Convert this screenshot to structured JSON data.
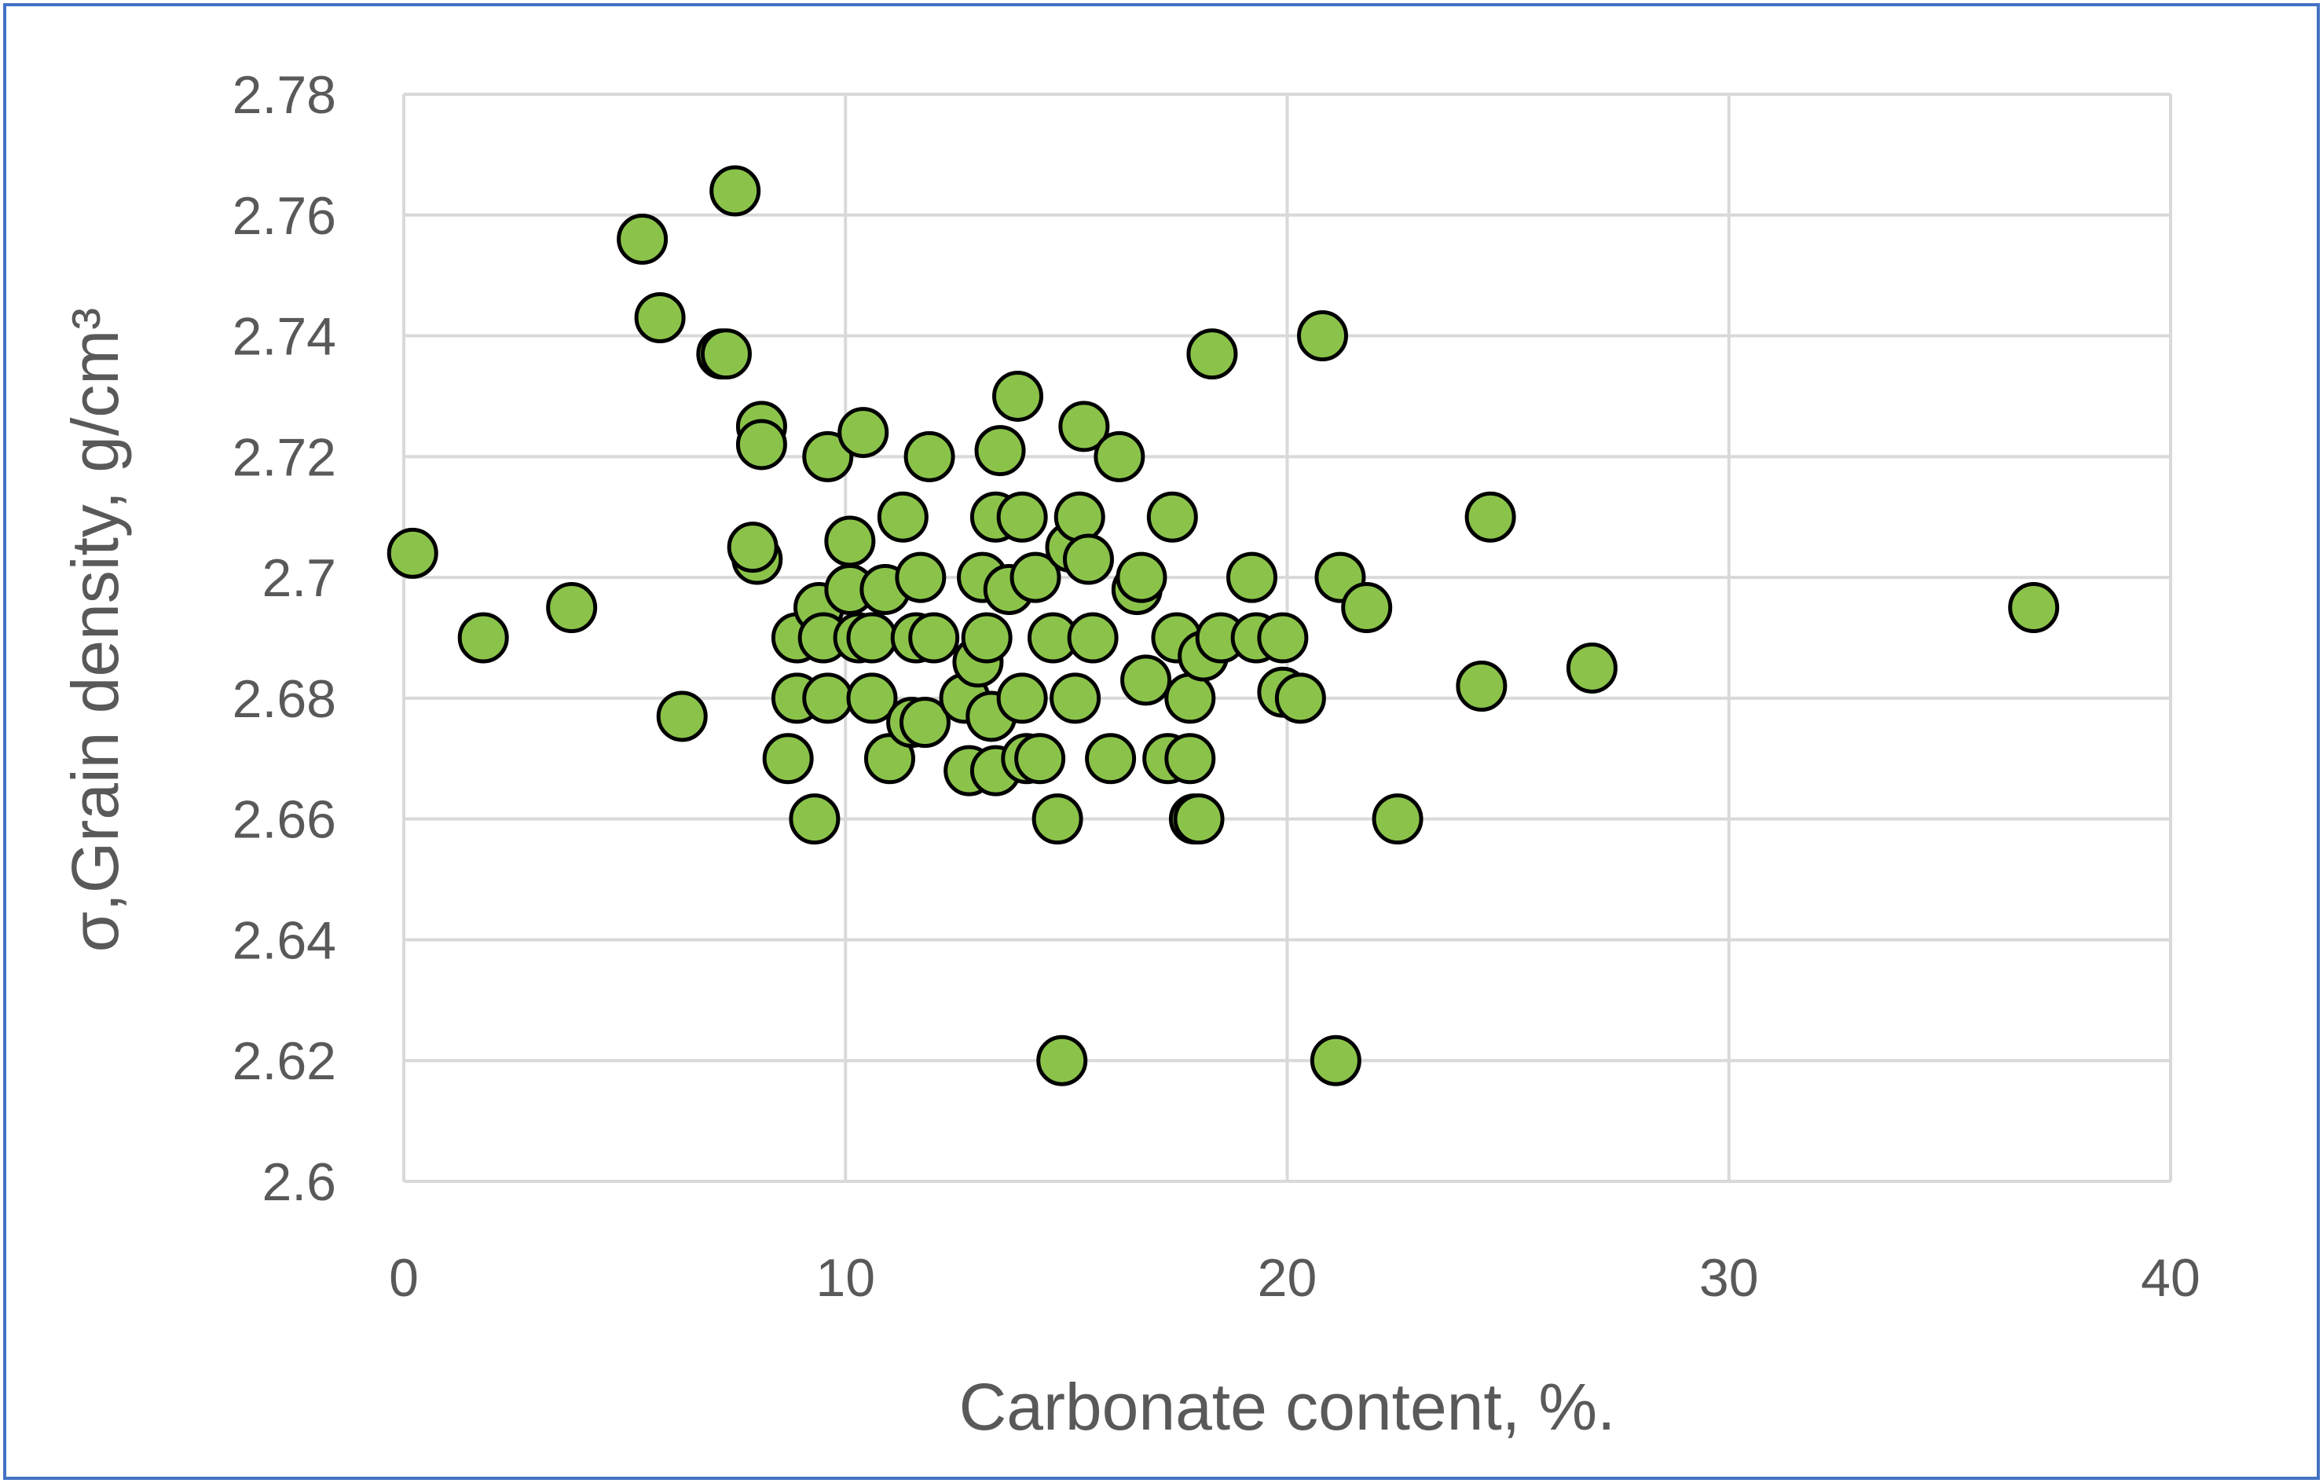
{
  "chart_data": {
    "type": "scatter",
    "title": "",
    "xlabel": "Carbonate content, %.",
    "ylabel": "σ,Grain density, g/cm³",
    "xlim": [
      0,
      40
    ],
    "ylim": [
      2.6,
      2.78
    ],
    "xticks": [
      "0",
      "10",
      "20",
      "30",
      "40"
    ],
    "yticks": [
      "2.6",
      "2.62",
      "2.64",
      "2.66",
      "2.68",
      "2.7",
      "2.72",
      "2.74",
      "2.76",
      "2.78"
    ],
    "grid": true,
    "legend": "none",
    "colors": {
      "marker": "#8bc34a",
      "marker_edge": "#000000",
      "grid": "#d9d9d9",
      "text": "#595959",
      "frame": "#4472c4"
    },
    "series": [
      {
        "points": [
          [
            0.2,
            2.704
          ],
          [
            1.8,
            2.69
          ],
          [
            3.8,
            2.695
          ],
          [
            5.4,
            2.756
          ],
          [
            5.8,
            2.743
          ],
          [
            6.3,
            2.677
          ],
          [
            7.2,
            2.737
          ],
          [
            7.3,
            2.737
          ],
          [
            7.5,
            2.764
          ],
          [
            8.1,
            2.725
          ],
          [
            8.1,
            2.722
          ],
          [
            8.0,
            2.703
          ],
          [
            7.9,
            2.705
          ],
          [
            8.7,
            2.67
          ],
          [
            8.9,
            2.69
          ],
          [
            8.9,
            2.68
          ],
          [
            9.3,
            2.66
          ],
          [
            9.4,
            2.695
          ],
          [
            9.5,
            2.69
          ],
          [
            9.6,
            2.68
          ],
          [
            9.6,
            2.72
          ],
          [
            10.1,
            2.706
          ],
          [
            10.1,
            2.698
          ],
          [
            10.3,
            2.69
          ],
          [
            10.4,
            2.724
          ],
          [
            10.6,
            2.68
          ],
          [
            10.6,
            2.69
          ],
          [
            10.9,
            2.698
          ],
          [
            11.0,
            2.67
          ],
          [
            11.3,
            2.71
          ],
          [
            11.5,
            2.676
          ],
          [
            11.6,
            2.69
          ],
          [
            11.7,
            2.7
          ],
          [
            11.8,
            2.676
          ],
          [
            11.9,
            2.72
          ],
          [
            12.0,
            2.69
          ],
          [
            12.7,
            2.68
          ],
          [
            12.8,
            2.668
          ],
          [
            13.0,
            2.686
          ],
          [
            13.1,
            2.7
          ],
          [
            13.2,
            2.69
          ],
          [
            13.3,
            2.677
          ],
          [
            13.4,
            2.668
          ],
          [
            13.4,
            2.71
          ],
          [
            13.5,
            2.721
          ],
          [
            13.7,
            2.698
          ],
          [
            13.9,
            2.73
          ],
          [
            14.0,
            2.71
          ],
          [
            14.0,
            2.68
          ],
          [
            14.1,
            2.67
          ],
          [
            14.3,
            2.7
          ],
          [
            14.4,
            2.67
          ],
          [
            14.7,
            2.69
          ],
          [
            14.8,
            2.66
          ],
          [
            14.9,
            2.62
          ],
          [
            15.1,
            2.705
          ],
          [
            15.2,
            2.68
          ],
          [
            15.3,
            2.71
          ],
          [
            15.4,
            2.725
          ],
          [
            15.5,
            2.703
          ],
          [
            15.6,
            2.69
          ],
          [
            16.0,
            2.67
          ],
          [
            16.2,
            2.72
          ],
          [
            16.6,
            2.698
          ],
          [
            16.7,
            2.7
          ],
          [
            16.8,
            2.683
          ],
          [
            17.3,
            2.67
          ],
          [
            17.4,
            2.71
          ],
          [
            17.5,
            2.69
          ],
          [
            17.8,
            2.67
          ],
          [
            17.8,
            2.68
          ],
          [
            17.9,
            2.66
          ],
          [
            18.0,
            2.66
          ],
          [
            18.1,
            2.687
          ],
          [
            18.3,
            2.737
          ],
          [
            18.5,
            2.69
          ],
          [
            19.2,
            2.7
          ],
          [
            19.3,
            2.69
          ],
          [
            19.9,
            2.681
          ],
          [
            19.9,
            2.69
          ],
          [
            20.3,
            2.68
          ],
          [
            20.8,
            2.74
          ],
          [
            21.1,
            2.62
          ],
          [
            21.2,
            2.7
          ],
          [
            21.8,
            2.695
          ],
          [
            22.5,
            2.66
          ],
          [
            24.4,
            2.682
          ],
          [
            24.6,
            2.71
          ],
          [
            26.9,
            2.685
          ],
          [
            36.9,
            2.695
          ]
        ]
      }
    ]
  }
}
